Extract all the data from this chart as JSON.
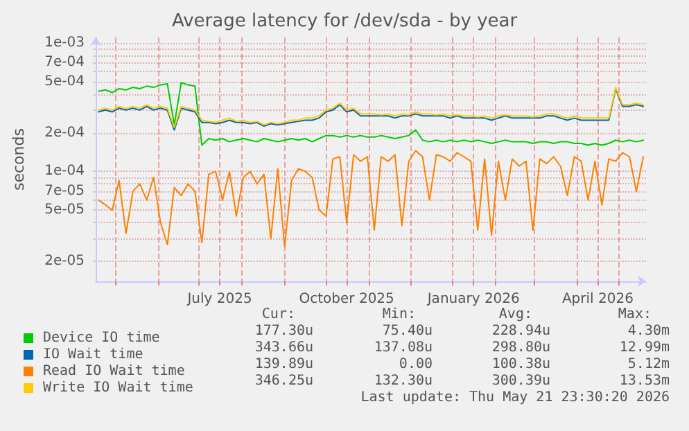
{
  "chart_data": {
    "type": "line",
    "title": "Average latency for /dev/sda - by year",
    "ylabel": "seconds",
    "x": [
      "2025-04-19",
      "2025-04-24",
      "2025-04-29",
      "2025-05-04",
      "2025-05-09",
      "2025-05-14",
      "2025-05-19",
      "2025-05-24",
      "2025-05-29",
      "2025-06-03",
      "2025-06-08",
      "2025-06-13",
      "2025-06-18",
      "2025-06-23",
      "2025-06-28",
      "2025-07-03",
      "2025-07-08",
      "2025-07-13",
      "2025-07-18",
      "2025-07-23",
      "2025-07-28",
      "2025-08-02",
      "2025-08-07",
      "2025-08-12",
      "2025-08-17",
      "2025-08-22",
      "2025-08-27",
      "2025-09-01",
      "2025-09-06",
      "2025-09-11",
      "2025-09-16",
      "2025-09-21",
      "2025-09-26",
      "2025-10-01",
      "2025-10-06",
      "2025-10-11",
      "2025-10-16",
      "2025-10-21",
      "2025-10-26",
      "2025-10-31",
      "2025-11-05",
      "2025-11-10",
      "2025-11-15",
      "2025-11-20",
      "2025-11-25",
      "2025-11-30",
      "2025-12-05",
      "2025-12-10",
      "2025-12-15",
      "2025-12-20",
      "2025-12-25",
      "2025-12-30",
      "2026-01-04",
      "2026-01-09",
      "2026-01-14",
      "2026-01-19",
      "2026-01-24",
      "2026-01-29",
      "2026-02-03",
      "2026-02-08",
      "2026-02-13",
      "2026-02-18",
      "2026-02-23",
      "2026-02-28",
      "2026-03-05",
      "2026-03-10",
      "2026-03-15",
      "2026-03-20",
      "2026-03-25",
      "2026-03-30",
      "2026-04-04",
      "2026-04-09",
      "2026-04-14",
      "2026-04-19",
      "2026-04-24",
      "2026-04-29",
      "2026-05-04",
      "2026-05-09",
      "2026-05-14",
      "2026-05-19"
    ],
    "series": [
      {
        "name": "Device IO time",
        "color": "#00cc00",
        "values": [
          0.00042,
          0.00043,
          0.00041,
          0.00044,
          0.00043,
          0.00045,
          0.00044,
          0.00046,
          0.00045,
          0.00047,
          0.00048,
          0.00023,
          0.00049,
          0.00047,
          0.00046,
          0.00016,
          0.00018,
          0.000175,
          0.00018,
          0.00017,
          0.000175,
          0.00018,
          0.000175,
          0.00017,
          0.00018,
          0.000175,
          0.00017,
          0.000175,
          0.00018,
          0.000175,
          0.00018,
          0.00017,
          0.00018,
          0.00019,
          0.00019,
          0.000185,
          0.00019,
          0.000185,
          0.00019,
          0.000185,
          0.000185,
          0.00019,
          0.000185,
          0.00018,
          0.000185,
          0.00019,
          0.00021,
          0.000175,
          0.00017,
          0.000175,
          0.00017,
          0.000175,
          0.00017,
          0.000175,
          0.00017,
          0.000175,
          0.00017,
          0.000165,
          0.00017,
          0.000175,
          0.00017,
          0.00017,
          0.00017,
          0.000165,
          0.00017,
          0.00017,
          0.000165,
          0.00017,
          0.00017,
          0.000165,
          0.000165,
          0.00016,
          0.000165,
          0.00016,
          0.000165,
          0.000175,
          0.00017,
          0.000175,
          0.00017,
          0.000175
        ]
      },
      {
        "name": "IO Wait time",
        "color": "#0066b3",
        "values": [
          0.00029,
          0.0003,
          0.00029,
          0.00031,
          0.0003,
          0.00031,
          0.0003,
          0.00032,
          0.0003,
          0.00031,
          0.0003,
          0.00021,
          0.00031,
          0.0003,
          0.00029,
          0.00024,
          0.00024,
          0.000235,
          0.00024,
          0.00025,
          0.00024,
          0.00024,
          0.000235,
          0.00024,
          0.000225,
          0.000235,
          0.00023,
          0.000235,
          0.00024,
          0.000245,
          0.00025,
          0.00025,
          0.00026,
          0.00029,
          0.0003,
          0.00033,
          0.00029,
          0.0003,
          0.00027,
          0.00027,
          0.00027,
          0.00027,
          0.00027,
          0.00026,
          0.00027,
          0.00027,
          0.00028,
          0.00027,
          0.00027,
          0.00027,
          0.00027,
          0.00026,
          0.00027,
          0.00026,
          0.00026,
          0.00026,
          0.00026,
          0.00025,
          0.00026,
          0.00027,
          0.00026,
          0.00026,
          0.00026,
          0.00026,
          0.00026,
          0.00027,
          0.00027,
          0.00026,
          0.00025,
          0.00026,
          0.00025,
          0.00025,
          0.00025,
          0.00025,
          0.00025,
          0.00044,
          0.00032,
          0.00032,
          0.00033,
          0.00032
        ]
      },
      {
        "name": "Read IO Wait time",
        "color": "#ff8000",
        "values": [
          6e-05,
          5.5e-05,
          5e-05,
          8.5e-05,
          3.3e-05,
          7e-05,
          8e-05,
          6e-05,
          9e-05,
          4e-05,
          2.7e-05,
          7.5e-05,
          6.5e-05,
          8e-05,
          7e-05,
          2.8e-05,
          9.5e-05,
          0.0001,
          6e-05,
          0.0001,
          4.5e-05,
          9e-05,
          0.0001,
          8e-05,
          9.5e-05,
          3e-05,
          0.000105,
          2.6e-05,
          8.5e-05,
          0.000105,
          0.0001,
          9e-05,
          5e-05,
          4.5e-05,
          0.000125,
          0.00013,
          4e-05,
          0.000135,
          0.00012,
          0.00013,
          3.5e-05,
          0.00013,
          0.00012,
          0.000135,
          3.8e-05,
          0.00012,
          0.000145,
          0.00013,
          6e-05,
          0.000135,
          0.00013,
          0.00012,
          0.00014,
          0.00013,
          0.00012,
          3.5e-05,
          0.000125,
          3.2e-05,
          0.00012,
          6e-05,
          0.000125,
          0.00011,
          0.00012,
          3.5e-05,
          0.000125,
          0.000115,
          0.00013,
          0.00011,
          6.5e-05,
          0.00013,
          0.00012,
          6e-05,
          0.00012,
          5.5e-05,
          0.000125,
          0.00012,
          0.00014,
          0.00013,
          7e-05,
          0.00013
        ]
      },
      {
        "name": "Write IO Wait time",
        "color": "#ffcc00",
        "values": [
          0.0003,
          0.00031,
          0.0003,
          0.00032,
          0.00031,
          0.00032,
          0.00031,
          0.00033,
          0.00031,
          0.00032,
          0.00031,
          0.00022,
          0.00032,
          0.00031,
          0.0003,
          0.00025,
          0.000245,
          0.00024,
          0.00025,
          0.00026,
          0.000245,
          0.00025,
          0.00024,
          0.000245,
          0.00023,
          0.00024,
          0.000235,
          0.00024,
          0.00025,
          0.00025,
          0.00026,
          0.00026,
          0.00027,
          0.0003,
          0.00031,
          0.00034,
          0.0003,
          0.00031,
          0.00028,
          0.00028,
          0.00028,
          0.000275,
          0.00028,
          0.00027,
          0.00028,
          0.000275,
          0.00029,
          0.00028,
          0.00028,
          0.000275,
          0.00028,
          0.00027,
          0.000275,
          0.00027,
          0.00027,
          0.000265,
          0.00027,
          0.00026,
          0.00027,
          0.000275,
          0.00027,
          0.00027,
          0.00027,
          0.000265,
          0.00027,
          0.00028,
          0.00028,
          0.00027,
          0.00026,
          0.00027,
          0.00026,
          0.00026,
          0.00026,
          0.00026,
          0.00026,
          0.00045,
          0.00033,
          0.00033,
          0.00034,
          0.00033
        ]
      }
    ],
    "log": "y",
    "xlim": [
      "2025-04-17",
      "2026-05-21"
    ],
    "ylim": [
      1.4e-05,
      0.0011
    ],
    "xticks": [
      {
        "value": "2025-05-01",
        "label": null
      },
      {
        "value": "2025-06-01",
        "label": null
      },
      {
        "value": "2025-07-01",
        "label": null
      },
      {
        "value": "2025-07-16",
        "label": "July 2025"
      },
      {
        "value": "2025-08-01",
        "label": null
      },
      {
        "value": "2025-09-01",
        "label": null
      },
      {
        "value": "2025-10-01",
        "label": null
      },
      {
        "value": "2025-10-16",
        "label": "October 2025"
      },
      {
        "value": "2025-11-01",
        "label": null
      },
      {
        "value": "2025-12-01",
        "label": null
      },
      {
        "value": "2026-01-01",
        "label": null
      },
      {
        "value": "2026-01-16",
        "label": "January 2026"
      },
      {
        "value": "2026-02-01",
        "label": null
      },
      {
        "value": "2026-03-01",
        "label": null
      },
      {
        "value": "2026-04-01",
        "label": null
      },
      {
        "value": "2026-04-16",
        "label": "April 2026"
      },
      {
        "value": "2026-05-01",
        "label": null
      }
    ],
    "yticks": [
      {
        "value": 2e-05,
        "label": "2e-05"
      },
      {
        "value": 3e-05,
        "label": null
      },
      {
        "value": 4e-05,
        "label": null
      },
      {
        "value": 5e-05,
        "label": "5e-05"
      },
      {
        "value": 6e-05,
        "label": null
      },
      {
        "value": 7e-05,
        "label": "7e-05"
      },
      {
        "value": 8e-05,
        "label": null
      },
      {
        "value": 9e-05,
        "label": null
      },
      {
        "value": 0.0001,
        "label": "1e-04"
      },
      {
        "value": 0.0002,
        "label": "2e-04"
      },
      {
        "value": 0.0003,
        "label": null
      },
      {
        "value": 0.0004,
        "label": null
      },
      {
        "value": 0.0005,
        "label": "5e-04"
      },
      {
        "value": 0.0006,
        "label": null
      },
      {
        "value": 0.0007,
        "label": "7e-04"
      },
      {
        "value": 0.0008,
        "label": null
      },
      {
        "value": 0.0009,
        "label": null
      },
      {
        "value": 0.001,
        "label": "1e-03"
      }
    ],
    "grid": true,
    "legend": "bottom",
    "marker": "none",
    "line_style": "solid",
    "annotations": [
      "Cur:",
      "Min:",
      "Avg:",
      "Max:",
      "177.30u",
      "75.40u",
      "228.94u",
      "4.30m",
      "343.66u",
      "137.08u",
      "298.80u",
      "12.99m",
      "139.89u",
      "0.00",
      "100.38u",
      "5.12m",
      "346.25u",
      "132.30u",
      "300.39u",
      "13.53m",
      "Last update: Thu May 21 23:30:20 2026"
    ]
  }
}
